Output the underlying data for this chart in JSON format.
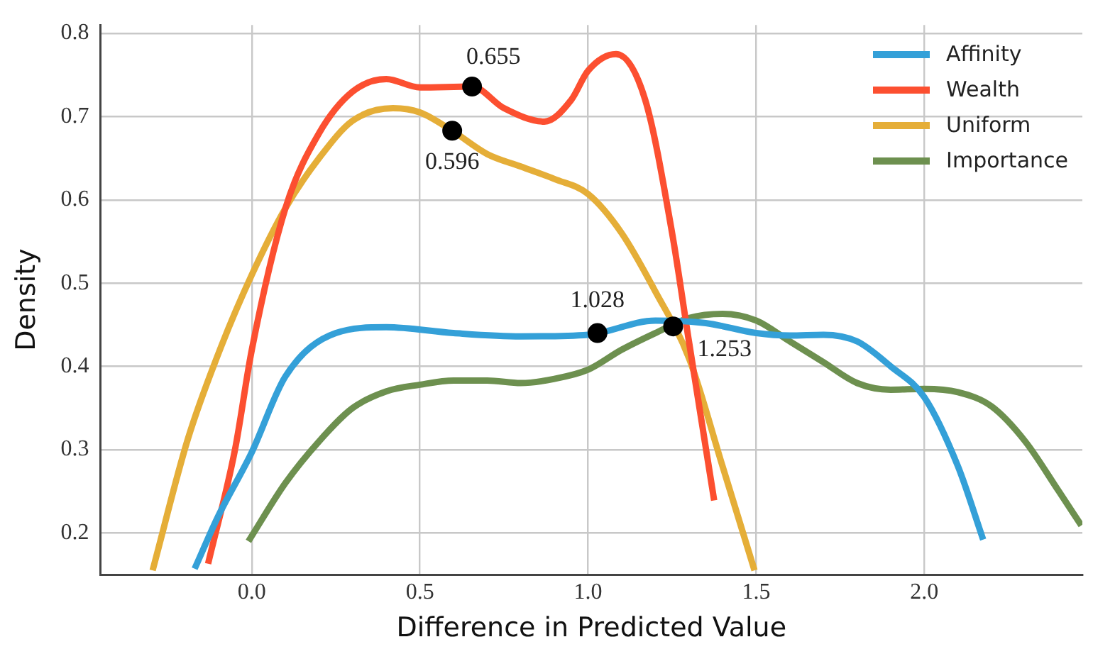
{
  "chart_data": {
    "type": "line",
    "xlabel": "Difference in Predicted Value",
    "ylabel": "Density",
    "xlim": [
      -0.45,
      2.47
    ],
    "xticks": [
      {
        "value": 0,
        "label": "0.0"
      },
      0.5,
      {
        "value": 1,
        "label": "1.0"
      },
      1.5,
      {
        "value": 2,
        "label": "2.0"
      }
    ],
    "ylim": [
      0.15,
      0.81
    ],
    "yticks": [
      0.2,
      0.3,
      0.4,
      0.5,
      0.6,
      0.7,
      0.8
    ],
    "grid": true,
    "legend": "top right",
    "marker": "none",
    "line_style": "solid",
    "series": [
      {
        "name": "Affinity",
        "color": "#34a0d8",
        "x": [
          -0.17,
          -0.1,
          0.0,
          0.1,
          0.25,
          0.4,
          0.6,
          0.8,
          1.0,
          1.2,
          1.35,
          1.5,
          1.6,
          1.7,
          1.8,
          1.9,
          2.0,
          2.1,
          2.175
        ],
        "values": [
          0.157,
          0.22,
          0.297,
          0.388,
          0.44,
          0.447,
          0.44,
          0.436,
          0.438,
          0.455,
          0.452,
          0.44,
          0.437,
          0.438,
          0.43,
          0.4,
          0.363,
          0.28,
          0.192
        ]
      },
      {
        "name": "Wealth",
        "color": "#fc4f30",
        "x": [
          -0.13,
          -0.05,
          0.0,
          0.1,
          0.2,
          0.3,
          0.4,
          0.5,
          0.655,
          0.75,
          0.87,
          0.95,
          1.0,
          1.083,
          1.17,
          1.25,
          1.3,
          1.375
        ],
        "values": [
          0.163,
          0.3,
          0.42,
          0.59,
          0.68,
          0.73,
          0.745,
          0.735,
          0.736,
          0.71,
          0.694,
          0.72,
          0.755,
          0.775,
          0.72,
          0.56,
          0.43,
          0.239
        ]
      },
      {
        "name": "Uniform",
        "color": "#e5ae38",
        "x": [
          -0.295,
          -0.19,
          -0.09,
          0.0,
          0.1,
          0.2,
          0.3,
          0.42,
          0.5,
          0.596,
          0.7,
          0.8,
          0.9,
          1.0,
          1.1,
          1.2,
          1.3,
          1.4,
          1.495
        ],
        "values": [
          0.155,
          0.313,
          0.425,
          0.51,
          0.59,
          0.65,
          0.695,
          0.71,
          0.705,
          0.683,
          0.655,
          0.64,
          0.625,
          0.607,
          0.56,
          0.49,
          0.41,
          0.28,
          0.155
        ]
      },
      {
        "name": "Importance",
        "color": "#6d904f",
        "x": [
          -0.01,
          0.1,
          0.2,
          0.3,
          0.4,
          0.5,
          0.6,
          0.7,
          0.8,
          0.9,
          1.0,
          1.1,
          1.2,
          1.3,
          1.4,
          1.5,
          1.6,
          1.7,
          1.8,
          1.9,
          2.0,
          2.1,
          2.2,
          2.3,
          2.4,
          2.467
        ],
        "values": [
          0.19,
          0.26,
          0.31,
          0.35,
          0.37,
          0.378,
          0.383,
          0.383,
          0.38,
          0.385,
          0.396,
          0.42,
          0.44,
          0.458,
          0.463,
          0.455,
          0.43,
          0.405,
          0.38,
          0.372,
          0.373,
          0.369,
          0.352,
          0.31,
          0.25,
          0.209
        ]
      },
      {
        "type": "scatter",
        "color": "#000000",
        "marker": "circle",
        "x": [
          0.655,
          0.596,
          1.028,
          1.253
        ],
        "values": [
          0.736,
          0.683,
          0.44,
          0.448
        ]
      }
    ],
    "annotations": [
      {
        "text": "0.655",
        "x": 0.655,
        "y": 0.736
      },
      {
        "text": "0.596",
        "x": 0.596,
        "y": 0.683
      },
      {
        "text": "1.028",
        "x": 1.028,
        "y": 0.44
      },
      {
        "text": "1.253",
        "x": 1.253,
        "y": 0.448
      }
    ]
  }
}
